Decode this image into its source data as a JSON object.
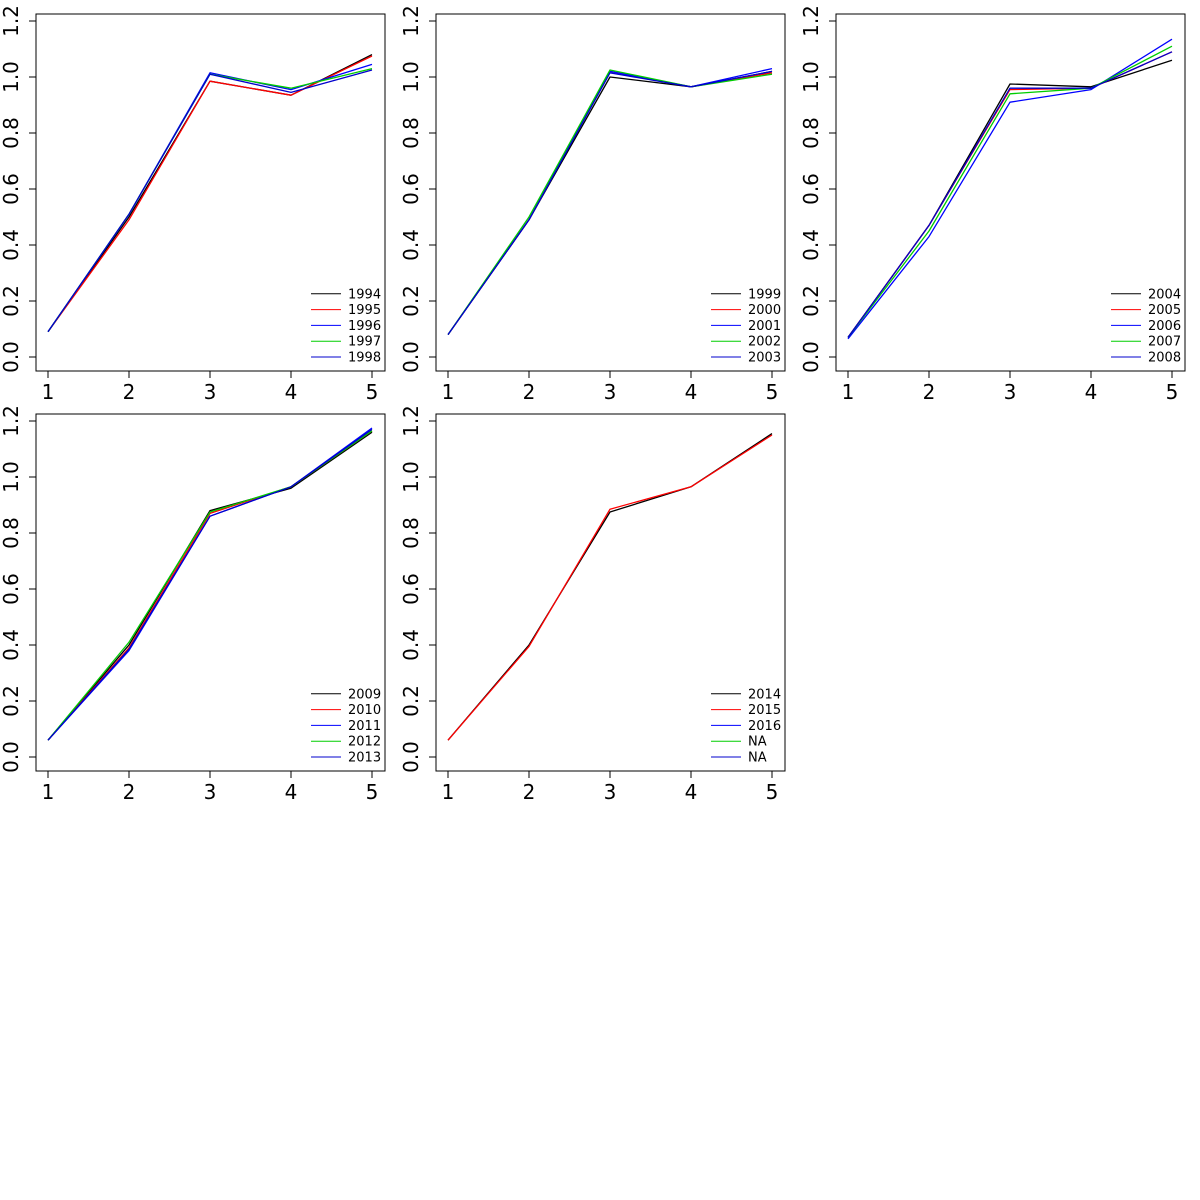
{
  "chart_data": [
    {
      "type": "line",
      "x": [
        1,
        2,
        3,
        4,
        5
      ],
      "xlim": [
        1,
        5
      ],
      "ylim": [
        0.0,
        1.2
      ],
      "x_ticks": [
        "1",
        "2",
        "3",
        "4",
        "5"
      ],
      "y_ticks": [
        "0.0",
        "0.2",
        "0.4",
        "0.6",
        "0.8",
        "1.0",
        "1.2"
      ],
      "grid": false,
      "legend_position": "bottom-right",
      "series": [
        {
          "name": "1994",
          "color": "#000000",
          "values": [
            0.09,
            0.5,
            0.985,
            0.935,
            1.08
          ]
        },
        {
          "name": "1995",
          "color": "#ff0000",
          "values": [
            0.09,
            0.49,
            0.985,
            0.935,
            1.075
          ]
        },
        {
          "name": "1996",
          "color": "#0000ff",
          "values": [
            0.09,
            0.51,
            1.015,
            0.955,
            1.045
          ]
        },
        {
          "name": "1997",
          "color": "#00cd00",
          "values": [
            0.09,
            0.51,
            1.01,
            0.96,
            1.03
          ]
        },
        {
          "name": "1998",
          "color": "#0000cd",
          "values": [
            0.09,
            0.51,
            1.01,
            0.945,
            1.025
          ]
        }
      ]
    },
    {
      "type": "line",
      "x": [
        1,
        2,
        3,
        4,
        5
      ],
      "xlim": [
        1,
        5
      ],
      "ylim": [
        0.0,
        1.2
      ],
      "x_ticks": [
        "1",
        "2",
        "3",
        "4",
        "5"
      ],
      "y_ticks": [
        "0.0",
        "0.2",
        "0.4",
        "0.6",
        "0.8",
        "1.0",
        "1.2"
      ],
      "grid": false,
      "legend_position": "bottom-right",
      "series": [
        {
          "name": "1999",
          "color": "#000000",
          "values": [
            0.08,
            0.49,
            1.0,
            0.965,
            1.02
          ]
        },
        {
          "name": "2000",
          "color": "#ff0000",
          "values": [
            0.08,
            0.49,
            1.02,
            0.965,
            1.015
          ]
        },
        {
          "name": "2001",
          "color": "#0000ff",
          "values": [
            0.08,
            0.49,
            1.02,
            0.965,
            1.03
          ]
        },
        {
          "name": "2002",
          "color": "#00cd00",
          "values": [
            0.08,
            0.5,
            1.025,
            0.965,
            1.01
          ]
        },
        {
          "name": "2003",
          "color": "#0000cd",
          "values": [
            0.08,
            0.49,
            1.015,
            0.965,
            1.02
          ]
        }
      ]
    },
    {
      "type": "line",
      "x": [
        1,
        2,
        3,
        4,
        5
      ],
      "xlim": [
        1,
        5
      ],
      "ylim": [
        0.0,
        1.2
      ],
      "x_ticks": [
        "1",
        "2",
        "3",
        "4",
        "5"
      ],
      "y_ticks": [
        "0.0",
        "0.2",
        "0.4",
        "0.6",
        "0.8",
        "1.0",
        "1.2"
      ],
      "grid": false,
      "legend_position": "bottom-right",
      "series": [
        {
          "name": "2004",
          "color": "#000000",
          "values": [
            0.07,
            0.47,
            0.975,
            0.965,
            1.06
          ]
        },
        {
          "name": "2005",
          "color": "#ff0000",
          "values": [
            0.07,
            0.47,
            0.955,
            0.96,
            1.09
          ]
        },
        {
          "name": "2006",
          "color": "#0000ff",
          "values": [
            0.065,
            0.43,
            0.91,
            0.955,
            1.135
          ]
        },
        {
          "name": "2007",
          "color": "#00cd00",
          "values": [
            0.07,
            0.45,
            0.94,
            0.96,
            1.11
          ]
        },
        {
          "name": "2008",
          "color": "#0000cd",
          "values": [
            0.07,
            0.47,
            0.96,
            0.96,
            1.09
          ]
        }
      ]
    },
    {
      "type": "line",
      "x": [
        1,
        2,
        3,
        4,
        5
      ],
      "xlim": [
        1,
        5
      ],
      "ylim": [
        0.0,
        1.2
      ],
      "x_ticks": [
        "1",
        "2",
        "3",
        "4",
        "5"
      ],
      "y_ticks": [
        "0.0",
        "0.2",
        "0.4",
        "0.6",
        "0.8",
        "1.0",
        "1.2"
      ],
      "grid": false,
      "legend_position": "bottom-right",
      "series": [
        {
          "name": "2009",
          "color": "#000000",
          "values": [
            0.06,
            0.4,
            0.88,
            0.96,
            1.16
          ]
        },
        {
          "name": "2010",
          "color": "#ff0000",
          "values": [
            0.06,
            0.39,
            0.87,
            0.965,
            1.165
          ]
        },
        {
          "name": "2011",
          "color": "#0000ff",
          "values": [
            0.06,
            0.38,
            0.86,
            0.965,
            1.175
          ]
        },
        {
          "name": "2012",
          "color": "#00cd00",
          "values": [
            0.06,
            0.41,
            0.875,
            0.965,
            1.165
          ]
        },
        {
          "name": "2013",
          "color": "#0000cd",
          "values": [
            0.06,
            0.385,
            0.86,
            0.965,
            1.17
          ]
        }
      ]
    },
    {
      "type": "line",
      "x": [
        1,
        2,
        3,
        4,
        5
      ],
      "xlim": [
        1,
        5
      ],
      "ylim": [
        0.0,
        1.2
      ],
      "x_ticks": [
        "1",
        "2",
        "3",
        "4",
        "5"
      ],
      "y_ticks": [
        "0.0",
        "0.2",
        "0.4",
        "0.6",
        "0.8",
        "1.0",
        "1.2"
      ],
      "grid": false,
      "legend_position": "bottom-right",
      "series": [
        {
          "name": "2014",
          "color": "#000000",
          "values": [
            0.06,
            0.4,
            0.875,
            0.965,
            1.155
          ]
        },
        {
          "name": "2015",
          "color": "#ff0000",
          "values": [
            0.06,
            0.395,
            0.885,
            0.965,
            1.15
          ]
        },
        {
          "name": "2016",
          "color": "#0000ff",
          "values": null
        },
        {
          "name": "NA",
          "color": "#00cd00",
          "values": null
        },
        {
          "name": "NA",
          "color": "#0000cd",
          "values": null
        }
      ]
    }
  ]
}
